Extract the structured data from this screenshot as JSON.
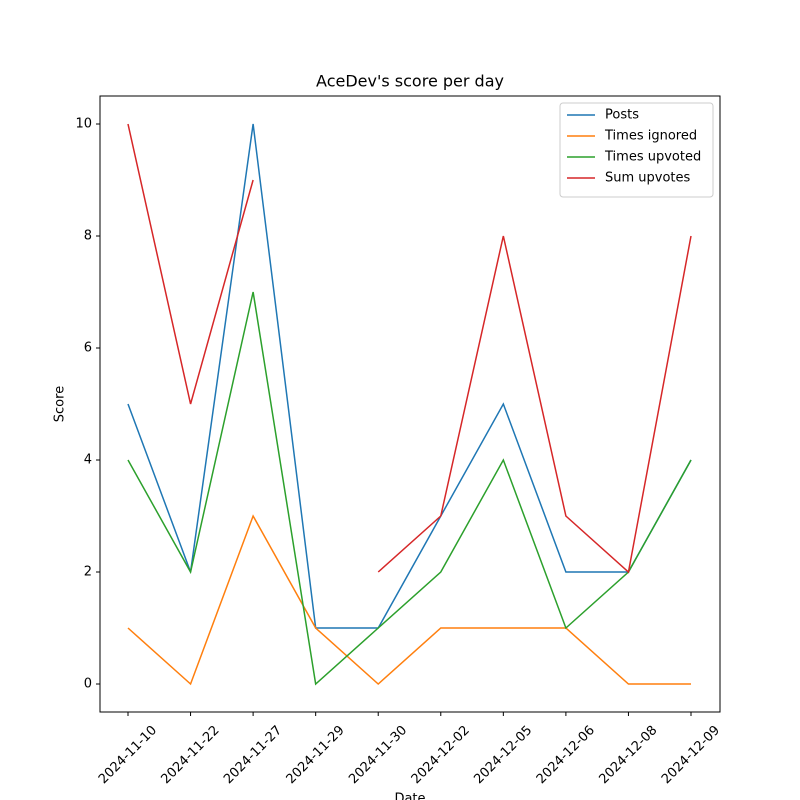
{
  "chart_data": {
    "type": "line",
    "title": "AceDev's score per day",
    "xlabel": "Date",
    "ylabel": "Score",
    "categories": [
      "2024-11-10",
      "2024-11-22",
      "2024-11-27",
      "2024-11-29",
      "2024-11-30",
      "2024-12-02",
      "2024-12-05",
      "2024-12-06",
      "2024-12-08",
      "2024-12-09"
    ],
    "series": [
      {
        "name": "Posts",
        "color": "#1f77b4",
        "values": [
          5,
          2,
          10,
          1,
          1,
          3,
          5,
          2,
          2,
          4
        ]
      },
      {
        "name": "Times ignored",
        "color": "#ff7f0e",
        "values": [
          1,
          0,
          3,
          1,
          0,
          1,
          1,
          1,
          0,
          0
        ]
      },
      {
        "name": "Times upvoted",
        "color": "#2ca02c",
        "values": [
          4,
          2,
          7,
          0,
          1,
          2,
          4,
          1,
          2,
          4
        ]
      },
      {
        "name": "Sum upvotes",
        "color": "#d62728",
        "values": [
          10,
          5,
          9,
          null,
          2,
          3,
          8,
          3,
          2,
          8
        ]
      }
    ],
    "ylim": [
      -0.5,
      10.5
    ],
    "yticks": [
      0,
      2,
      4,
      6,
      8,
      10
    ],
    "grid": false,
    "legend": "upper right"
  }
}
